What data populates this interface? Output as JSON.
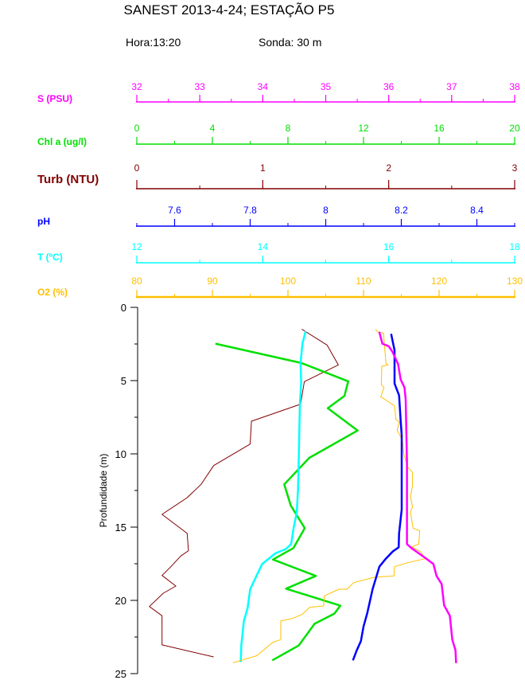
{
  "header": {
    "title": "SANEST 2013-4-24; ESTAÇÃO P5",
    "hora": "Hora:13:20",
    "sonda": "Sonda: 30 m"
  },
  "chart_data": {
    "type": "line",
    "title": "SANEST 2013-4-24; ESTAÇÃO P5",
    "ylabel": "Profundidade (m)",
    "ylim": [
      0,
      25
    ],
    "y_inverted": true,
    "y_ticks": [
      "0",
      "5",
      "10",
      "15",
      "20",
      "25"
    ],
    "grid": false,
    "axes": [
      {
        "key": "S",
        "label": "S (PSU)",
        "color": "#ff00ff",
        "range": [
          32,
          38
        ],
        "ticks": [
          "32",
          "33",
          "34",
          "35",
          "36",
          "37",
          "38"
        ],
        "tick_values": [
          32,
          33,
          34,
          35,
          36,
          37,
          38
        ],
        "minor_step": 0.5
      },
      {
        "key": "Chl",
        "label": "Chl a (ug/l)",
        "color": "#00e000",
        "range": [
          0,
          20
        ],
        "ticks": [
          "0",
          "4",
          "8",
          "12",
          "16",
          "20"
        ],
        "tick_values": [
          0,
          4,
          8,
          12,
          16,
          20
        ],
        "minor_step": 2
      },
      {
        "key": "Turb",
        "label": "Turb (NTU)",
        "color": "#800000",
        "range": [
          0,
          3
        ],
        "ticks": [
          "0",
          "1",
          "2",
          "3"
        ],
        "tick_values": [
          0,
          1,
          2,
          3
        ],
        "minor_step": 0.5
      },
      {
        "key": "pH",
        "label": "pH",
        "color": "#0000ff",
        "range": [
          7.5,
          8.5
        ],
        "ticks": [
          "7.6",
          "7.8",
          "8",
          "8.2",
          "8.4"
        ],
        "tick_values": [
          7.6,
          7.8,
          8,
          8.2,
          8.4
        ],
        "minor_step": 0.1
      },
      {
        "key": "T",
        "label": "T (ºC)",
        "color": "#00ffff",
        "range": [
          12,
          18
        ],
        "ticks": [
          "12",
          "14",
          "16",
          "18"
        ],
        "tick_values": [
          12,
          14,
          16,
          18
        ],
        "minor_step": 1
      },
      {
        "key": "O2",
        "label": "O2 (%)",
        "color": "#ffc000",
        "range": [
          80,
          130
        ],
        "ticks": [
          "80",
          "90",
          "100",
          "110",
          "120",
          "130"
        ],
        "tick_values": [
          80,
          90,
          100,
          110,
          120,
          130
        ],
        "minor_step": 5
      }
    ],
    "series": [
      {
        "key": "Turb",
        "depth": [
          1.49,
          2.57,
          3.93,
          5.07,
          6.1,
          6.61,
          7.77,
          9.33,
          10.8,
          12.08,
          12.99,
          14.13,
          15.43,
          16.61,
          16.97,
          17.79,
          18.3,
          19.02,
          19.51,
          20.42,
          21.05,
          23.04,
          23.86
        ],
        "values": [
          1.31,
          1.51,
          1.6,
          1.33,
          1.31,
          1.3,
          0.91,
          0.9,
          0.61,
          0.51,
          0.4,
          0.2,
          0.4,
          0.41,
          0.35,
          0.26,
          0.2,
          0.31,
          0.21,
          0.1,
          0.2,
          0.2,
          0.61
        ]
      },
      {
        "key": "Chl",
        "depth": [
          2.48,
          3.8,
          4.47,
          5.05,
          6.05,
          6.88,
          8.41,
          10.27,
          12.08,
          13.53,
          15.07,
          16.43,
          17.21,
          18.33,
          19.2,
          20.36,
          20.9,
          21.6,
          23.08,
          24.09
        ],
        "values": [
          4.16,
          8.71,
          10.04,
          11.19,
          10.99,
          10.11,
          11.69,
          9.13,
          7.8,
          8.15,
          8.89,
          8.29,
          7.21,
          9.48,
          7.9,
          10.77,
          10.46,
          9.41,
          8.57,
          7.17
        ]
      },
      {
        "key": "T",
        "depth": [
          1.63,
          2.48,
          3.8,
          5.11,
          6.65,
          8.37,
          10.54,
          12.36,
          13.98,
          15.07,
          16.16,
          16.49,
          16.79,
          17.52,
          18.24,
          19.24,
          20.51,
          21.41,
          23.04,
          24.22
        ],
        "values": [
          14.68,
          14.63,
          14.6,
          14.61,
          14.59,
          14.58,
          14.57,
          14.56,
          14.54,
          14.49,
          14.45,
          14.37,
          14.2,
          13.99,
          13.91,
          13.8,
          13.76,
          13.7,
          13.66,
          13.65
        ]
      },
      {
        "key": "O2",
        "depth": [
          1.49,
          1.7,
          1.76,
          3.84,
          3.93,
          4.02,
          5.29,
          5.47,
          6.11,
          6.47,
          6.74,
          7.64,
          7.83,
          8.37,
          9.09,
          10.0,
          10.91,
          11.27,
          12.17,
          12.9,
          13.62,
          13.98,
          15.07,
          15.25,
          16.16,
          16.34,
          16.7,
          17.16,
          17.43,
          17.7,
          18.33,
          18.42,
          18.79,
          19.24,
          19.24,
          19.69,
          20.38,
          20.47,
          20.96,
          21.23,
          21.41,
          22.68,
          22.86,
          23.32,
          23.77,
          24.04,
          24.26
        ],
        "values": [
          111.58,
          111.93,
          112.63,
          112.98,
          113.23,
          112.42,
          112.35,
          112.7,
          112.28,
          113.4,
          114.11,
          114.28,
          114.74,
          114.45,
          115.16,
          115.33,
          115.85,
          116.48,
          116.48,
          116.21,
          116.48,
          116.21,
          116.56,
          117.43,
          117.32,
          116.38,
          117.61,
          118.13,
          115.85,
          114.11,
          114.04,
          111.48,
          108.68,
          107.8,
          106.75,
          104.82,
          104.72,
          102.9,
          101.85,
          100.62,
          99.05,
          99.05,
          98.0,
          96.95,
          95.9,
          94.15,
          92.74
        ]
      },
      {
        "key": "pH",
        "depth": [
          1.81,
          2.93,
          5.2,
          6.01,
          7.65,
          8.73,
          13.8,
          15.43,
          16.38,
          16.67,
          17.16,
          17.7,
          19.24,
          20.87,
          21.78,
          22.78,
          23.41,
          24.09
        ],
        "values": [
          8.173,
          8.182,
          8.182,
          8.194,
          8.198,
          8.201,
          8.201,
          8.194,
          8.193,
          8.177,
          8.159,
          8.142,
          8.124,
          8.11,
          8.1,
          8.093,
          8.082,
          8.072
        ]
      },
      {
        "key": "S",
        "depth": [
          1.67,
          2.48,
          2.66,
          3.03,
          3.88,
          4.93,
          5.47,
          6.29,
          10.54,
          16.16,
          16.43,
          17.07,
          17.52,
          18.33,
          18.88,
          20.33,
          21.05,
          22.68,
          23.41,
          24.28
        ],
        "values": [
          35.85,
          35.9,
          36.0,
          36.06,
          36.15,
          36.19,
          36.25,
          36.27,
          36.29,
          36.29,
          36.36,
          36.57,
          36.71,
          36.76,
          36.84,
          36.88,
          36.97,
          37.01,
          37.06,
          37.07
        ]
      }
    ]
  }
}
